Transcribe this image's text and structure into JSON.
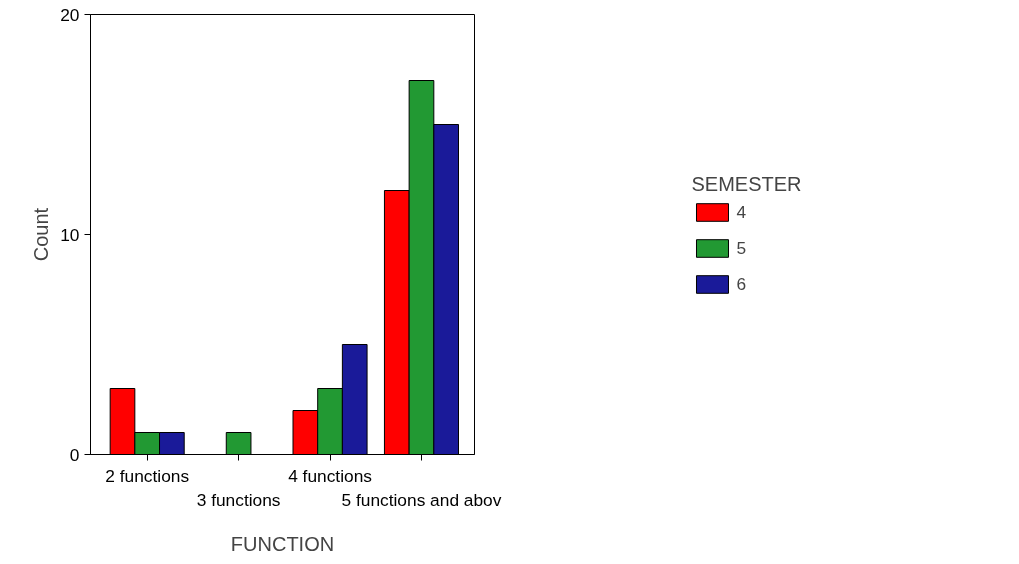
{
  "chart_data": {
    "type": "bar",
    "xlabel": "FUNCTION",
    "ylabel": "Count",
    "legend_title": "SEMESTER",
    "categories": [
      "2 functions",
      "3 functions",
      "4 functions",
      "5 functions and abov"
    ],
    "series": [
      {
        "name": "4",
        "color": "#ff0000",
        "values": [
          3,
          null,
          2,
          12
        ]
      },
      {
        "name": "5",
        "color": "#229933",
        "values": [
          1,
          1,
          3,
          17
        ]
      },
      {
        "name": "6",
        "color": "#1a1a99",
        "values": [
          1,
          null,
          5,
          15
        ]
      }
    ],
    "ylim": [
      0,
      20
    ],
    "yticks": [
      0,
      10,
      20
    ],
    "grid": false,
    "legend": "right"
  }
}
